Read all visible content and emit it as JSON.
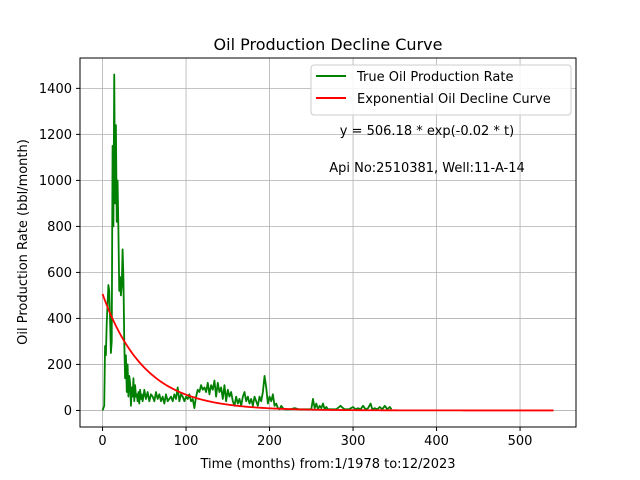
{
  "chart_data": {
    "type": "line",
    "title": "Oil Production Decline Curve",
    "xlabel": "Time (months) from:1/1978 to:12/2023",
    "ylabel": "Oil Production Rate (bbl/month)",
    "xlim": [
      -27,
      567
    ],
    "ylim": [
      -72,
      1532
    ],
    "xticks": [
      0,
      100,
      200,
      300,
      400,
      500
    ],
    "yticks": [
      0,
      200,
      400,
      600,
      800,
      1000,
      1200,
      1400
    ],
    "grid": true,
    "legend_position": "top-right",
    "annotations": [
      "y = 506.18 * exp(-0.02 * t)",
      "Api No:2510381, Well:11-A-14"
    ],
    "series": [
      {
        "name": "True Oil Production Rate",
        "color": "#008000",
        "points": [
          [
            0,
            0
          ],
          [
            1,
            10
          ],
          [
            2,
            20
          ],
          [
            3,
            280
          ],
          [
            4,
            240
          ],
          [
            5,
            380
          ],
          [
            6,
            460
          ],
          [
            7,
            545
          ],
          [
            8,
            520
          ],
          [
            9,
            400
          ],
          [
            10,
            250
          ],
          [
            11,
            300
          ],
          [
            12,
            1150
          ],
          [
            13,
            800
          ],
          [
            14,
            1460
          ],
          [
            15,
            900
          ],
          [
            16,
            1240
          ],
          [
            17,
            820
          ],
          [
            18,
            1000
          ],
          [
            19,
            780
          ],
          [
            20,
            520
          ],
          [
            21,
            580
          ],
          [
            22,
            500
          ],
          [
            23,
            540
          ],
          [
            24,
            700
          ],
          [
            25,
            580
          ],
          [
            26,
            300
          ],
          [
            27,
            140
          ],
          [
            28,
            240
          ],
          [
            29,
            80
          ],
          [
            30,
            200
          ],
          [
            31,
            60
          ],
          [
            32,
            150
          ],
          [
            33,
            120
          ],
          [
            34,
            20
          ],
          [
            35,
            100
          ],
          [
            36,
            60
          ],
          [
            37,
            140
          ],
          [
            38,
            40
          ],
          [
            39,
            110
          ],
          [
            40,
            60
          ],
          [
            41,
            70
          ],
          [
            42,
            40
          ],
          [
            43,
            80
          ],
          [
            44,
            30
          ],
          [
            45,
            90
          ],
          [
            46,
            50
          ],
          [
            47,
            70
          ],
          [
            48,
            40
          ],
          [
            49,
            60
          ],
          [
            50,
            90
          ],
          [
            52,
            50
          ],
          [
            54,
            80
          ],
          [
            56,
            40
          ],
          [
            58,
            70
          ],
          [
            60,
            60
          ],
          [
            62,
            40
          ],
          [
            64,
            80
          ],
          [
            66,
            50
          ],
          [
            68,
            70
          ],
          [
            70,
            40
          ],
          [
            72,
            60
          ],
          [
            74,
            30
          ],
          [
            76,
            70
          ],
          [
            78,
            40
          ],
          [
            80,
            50
          ],
          [
            82,
            60
          ],
          [
            84,
            40
          ],
          [
            86,
            70
          ],
          [
            88,
            50
          ],
          [
            90,
            100
          ],
          [
            92,
            40
          ],
          [
            94,
            70
          ],
          [
            96,
            60
          ],
          [
            98,
            40
          ],
          [
            100,
            60
          ],
          [
            102,
            50
          ],
          [
            104,
            70
          ],
          [
            106,
            40
          ],
          [
            108,
            50
          ],
          [
            110,
            10
          ],
          [
            112,
            60
          ],
          [
            114,
            90
          ],
          [
            116,
            80
          ],
          [
            118,
            110
          ],
          [
            120,
            90
          ],
          [
            122,
            100
          ],
          [
            124,
            80
          ],
          [
            126,
            120
          ],
          [
            128,
            70
          ],
          [
            130,
            110
          ],
          [
            132,
            90
          ],
          [
            134,
            130
          ],
          [
            136,
            60
          ],
          [
            138,
            120
          ],
          [
            140,
            80
          ],
          [
            142,
            100
          ],
          [
            144,
            50
          ],
          [
            146,
            110
          ],
          [
            148,
            40
          ],
          [
            150,
            90
          ],
          [
            152,
            60
          ],
          [
            154,
            80
          ],
          [
            156,
            40
          ],
          [
            158,
            20
          ],
          [
            160,
            60
          ],
          [
            162,
            30
          ],
          [
            164,
            50
          ],
          [
            166,
            20
          ],
          [
            168,
            60
          ],
          [
            170,
            80
          ],
          [
            172,
            40
          ],
          [
            174,
            60
          ],
          [
            176,
            30
          ],
          [
            178,
            50
          ],
          [
            180,
            20
          ],
          [
            182,
            60
          ],
          [
            184,
            40
          ],
          [
            186,
            20
          ],
          [
            188,
            60
          ],
          [
            190,
            40
          ],
          [
            192,
            80
          ],
          [
            194,
            150
          ],
          [
            196,
            100
          ],
          [
            198,
            30
          ],
          [
            200,
            60
          ],
          [
            202,
            40
          ],
          [
            204,
            70
          ],
          [
            206,
            20
          ],
          [
            208,
            30
          ],
          [
            210,
            10
          ],
          [
            212,
            5
          ],
          [
            214,
            20
          ],
          [
            216,
            10
          ],
          [
            218,
            5
          ],
          [
            220,
            5
          ],
          [
            225,
            5
          ],
          [
            230,
            10
          ],
          [
            235,
            5
          ],
          [
            240,
            5
          ],
          [
            245,
            5
          ],
          [
            250,
            5
          ],
          [
            252,
            50
          ],
          [
            254,
            10
          ],
          [
            256,
            30
          ],
          [
            258,
            5
          ],
          [
            260,
            20
          ],
          [
            262,
            10
          ],
          [
            264,
            30
          ],
          [
            266,
            5
          ],
          [
            268,
            15
          ],
          [
            270,
            5
          ],
          [
            275,
            5
          ],
          [
            280,
            5
          ],
          [
            285,
            20
          ],
          [
            288,
            10
          ],
          [
            290,
            5
          ],
          [
            295,
            5
          ],
          [
            300,
            15
          ],
          [
            303,
            5
          ],
          [
            306,
            10
          ],
          [
            309,
            5
          ],
          [
            312,
            20
          ],
          [
            315,
            5
          ],
          [
            318,
            10
          ],
          [
            321,
            30
          ],
          [
            323,
            5
          ],
          [
            326,
            10
          ],
          [
            329,
            5
          ],
          [
            332,
            15
          ],
          [
            335,
            5
          ],
          [
            338,
            20
          ],
          [
            341,
            5
          ],
          [
            344,
            15
          ],
          [
            346,
            5
          ]
        ]
      },
      {
        "name": "Exponential Oil Decline Curve",
        "color": "#ff0000",
        "a": 506.18,
        "b": 0.02,
        "x_range": [
          0,
          540
        ]
      }
    ]
  }
}
